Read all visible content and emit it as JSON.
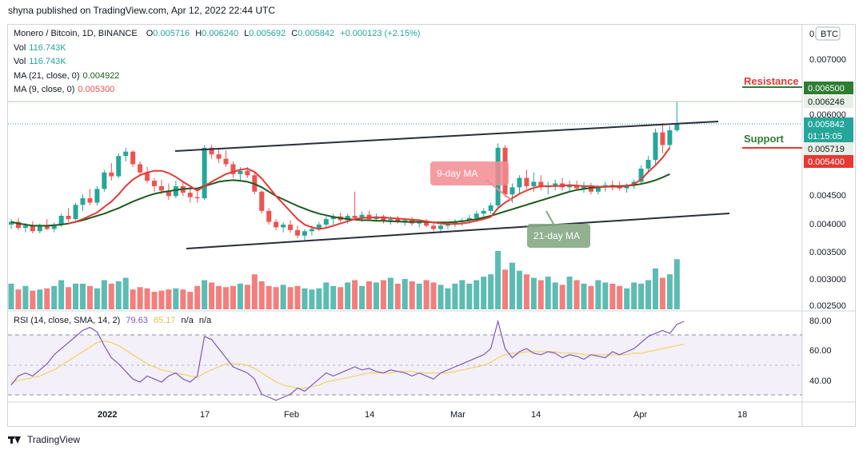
{
  "publisher": "shyna published on TradingView.com, Apr 12, 2022 22:44 UTC",
  "legend": {
    "symbol": "Monero / Bitcoin, 1D, BINANCE",
    "o_label": "O",
    "o": "0.005716",
    "h_label": "H",
    "h": "0.006240",
    "l_label": "L",
    "l": "0.005692",
    "c_label": "C",
    "c": "0.005842",
    "change": "+0.000123 (+2.15%)",
    "vol1_label": "Vol",
    "vol1": "116.743K",
    "vol2_label": "Vol",
    "vol2": "116.743K",
    "ma21_label": "MA (21, close, 0)",
    "ma21": "0.004922",
    "ma9_label": "MA (9, close, 0)",
    "ma9": "0.005300"
  },
  "rsi_legend": {
    "label": "RSI (14, close, SMA, 14, 2)",
    "v1": "79.63",
    "v2": "65.17",
    "v3": "n/a",
    "v4": "n/a"
  },
  "currency_badge": "BTC",
  "footer_brand": "TradingView",
  "annotations": {
    "resistance": "Resistance",
    "support": "Support",
    "ma9_callout": "9-day MA",
    "ma21_callout": "21-day MA"
  },
  "price_axis": {
    "ticks": [
      "0.00",
      "0.007000",
      "0.006500",
      "0.006000",
      "0.004500",
      "0.004000",
      "0.003500",
      "0.003000",
      "0.002500"
    ],
    "badges": [
      {
        "text": "0.006500",
        "color": "#2e7d32"
      },
      {
        "text": "0.006246",
        "color": "#e8efe6"
      },
      {
        "text": "0.005842",
        "color": "#26a69a"
      },
      {
        "text": "01:15:05",
        "color": "#26a69a"
      },
      {
        "text": "0.005719",
        "color": "#e8efe6"
      },
      {
        "text": "0.005400",
        "color": "#e53935"
      }
    ]
  },
  "rsi_axis": {
    "ticks": [
      "80.00",
      "60.00",
      "40.00"
    ]
  },
  "time_axis": {
    "ticks": [
      "2022",
      "17",
      "Feb",
      "14",
      "Mar",
      "14",
      "Apr",
      "18"
    ]
  },
  "colors": {
    "up": "#26a69a",
    "down": "#ef5350",
    "ma9": "#e53935",
    "ma21": "#1e5b1e",
    "rsi": "#7e57c2",
    "rsi_ma": "#f0d264",
    "trend": "#2a2e39"
  },
  "chart_data": {
    "type": "candlestick",
    "title": "Monero / Bitcoin, 1D, BINANCE",
    "ylim": [
      0.0025,
      0.0077
    ],
    "candles": [
      [
        0.004,
        0.0041,
        0.00392,
        0.00405
      ],
      [
        0.00405,
        0.00412,
        0.0039,
        0.00394
      ],
      [
        0.00394,
        0.00403,
        0.00386,
        0.00398
      ],
      [
        0.00398,
        0.00406,
        0.00384,
        0.00388
      ],
      [
        0.00388,
        0.00402,
        0.00384,
        0.00398
      ],
      [
        0.00398,
        0.0041,
        0.0039,
        0.00392
      ],
      [
        0.00392,
        0.00404,
        0.00386,
        0.004
      ],
      [
        0.004,
        0.0042,
        0.00396,
        0.00416
      ],
      [
        0.00416,
        0.0043,
        0.00405,
        0.0041
      ],
      [
        0.0041,
        0.0044,
        0.00408,
        0.00436
      ],
      [
        0.00436,
        0.00455,
        0.00425,
        0.00448
      ],
      [
        0.00448,
        0.00465,
        0.00435,
        0.0044
      ],
      [
        0.0044,
        0.0047,
        0.00435,
        0.00465
      ],
      [
        0.00465,
        0.005,
        0.0046,
        0.00495
      ],
      [
        0.00495,
        0.00512,
        0.0048,
        0.00488
      ],
      [
        0.00488,
        0.0053,
        0.00485,
        0.00525
      ],
      [
        0.00525,
        0.0054,
        0.00515,
        0.00533
      ],
      [
        0.00533,
        0.00535,
        0.00505,
        0.0051
      ],
      [
        0.0051,
        0.00515,
        0.0049,
        0.00495
      ],
      [
        0.00495,
        0.00505,
        0.00475,
        0.0048
      ],
      [
        0.0048,
        0.00485,
        0.0046,
        0.0047
      ],
      [
        0.0047,
        0.00482,
        0.00455,
        0.00462
      ],
      [
        0.00462,
        0.00475,
        0.00445,
        0.00452
      ],
      [
        0.00452,
        0.0048,
        0.00448,
        0.0047
      ],
      [
        0.0047,
        0.00478,
        0.00452,
        0.00458
      ],
      [
        0.00458,
        0.0047,
        0.0044,
        0.0045
      ],
      [
        0.0045,
        0.00462,
        0.0044,
        0.00448
      ],
      [
        0.00448,
        0.00545,
        0.00445,
        0.0054
      ],
      [
        0.0054,
        0.00545,
        0.0052,
        0.00528
      ],
      [
        0.00528,
        0.0054,
        0.00512,
        0.0052
      ],
      [
        0.0052,
        0.00535,
        0.00505,
        0.0051
      ],
      [
        0.0051,
        0.00515,
        0.00485,
        0.00492
      ],
      [
        0.00492,
        0.00505,
        0.0048,
        0.00498
      ],
      [
        0.00498,
        0.00505,
        0.00485,
        0.0049
      ],
      [
        0.0049,
        0.00495,
        0.00455,
        0.0046
      ],
      [
        0.0046,
        0.00462,
        0.0042,
        0.00425
      ],
      [
        0.00425,
        0.0043,
        0.004,
        0.00405
      ],
      [
        0.00405,
        0.0041,
        0.0039,
        0.00395
      ],
      [
        0.00395,
        0.00405,
        0.00386,
        0.004
      ],
      [
        0.004,
        0.00408,
        0.00385,
        0.0039
      ],
      [
        0.0039,
        0.00398,
        0.00375,
        0.0038
      ],
      [
        0.0038,
        0.00392,
        0.00372,
        0.00388
      ],
      [
        0.00388,
        0.00398,
        0.0038,
        0.00392
      ],
      [
        0.00392,
        0.00405,
        0.00388,
        0.004
      ],
      [
        0.004,
        0.00415,
        0.00395,
        0.0041
      ],
      [
        0.0041,
        0.0042,
        0.004,
        0.00415
      ],
      [
        0.00415,
        0.00422,
        0.00405,
        0.00408
      ],
      [
        0.00408,
        0.0042,
        0.00402,
        0.00416
      ],
      [
        0.00416,
        0.0046,
        0.0041,
        0.00412
      ],
      [
        0.00412,
        0.00424,
        0.00405,
        0.00418
      ],
      [
        0.00418,
        0.00425,
        0.00408,
        0.0041
      ],
      [
        0.0041,
        0.0042,
        0.00405,
        0.00415
      ],
      [
        0.00415,
        0.00418,
        0.00402,
        0.00408
      ],
      [
        0.00408,
        0.00415,
        0.004,
        0.0041
      ],
      [
        0.0041,
        0.00416,
        0.00402,
        0.00404
      ],
      [
        0.00404,
        0.00412,
        0.00398,
        0.00408
      ],
      [
        0.00408,
        0.00414,
        0.00398,
        0.00402
      ],
      [
        0.00402,
        0.0041,
        0.00395,
        0.00405
      ],
      [
        0.00405,
        0.0041,
        0.00395,
        0.00398
      ],
      [
        0.00398,
        0.00405,
        0.00388,
        0.00392
      ],
      [
        0.00392,
        0.00402,
        0.00384,
        0.00398
      ],
      [
        0.00398,
        0.00405,
        0.00392,
        0.004
      ],
      [
        0.004,
        0.0041,
        0.00395,
        0.00405
      ],
      [
        0.00405,
        0.00412,
        0.00398,
        0.00408
      ],
      [
        0.00408,
        0.00418,
        0.00402,
        0.00412
      ],
      [
        0.00412,
        0.00425,
        0.00408,
        0.0042
      ],
      [
        0.0042,
        0.0043,
        0.00415,
        0.00425
      ],
      [
        0.00425,
        0.0044,
        0.0042,
        0.00435
      ],
      [
        0.00435,
        0.00548,
        0.0043,
        0.0054
      ],
      [
        0.0054,
        0.00545,
        0.0045,
        0.00455
      ],
      [
        0.00455,
        0.00475,
        0.0044,
        0.00468
      ],
      [
        0.00468,
        0.0049,
        0.00455,
        0.00485
      ],
      [
        0.00485,
        0.005,
        0.00465,
        0.0047
      ],
      [
        0.0047,
        0.00495,
        0.0046,
        0.00478
      ],
      [
        0.00478,
        0.0049,
        0.00462,
        0.00468
      ],
      [
        0.00468,
        0.00478,
        0.00455,
        0.0047
      ],
      [
        0.0047,
        0.00482,
        0.00462,
        0.00475
      ],
      [
        0.00475,
        0.00485,
        0.00462,
        0.00468
      ],
      [
        0.00468,
        0.0048,
        0.0046,
        0.00472
      ],
      [
        0.00472,
        0.0048,
        0.00462,
        0.00466
      ],
      [
        0.00466,
        0.00478,
        0.00458,
        0.0047
      ],
      [
        0.0047,
        0.00476,
        0.00455,
        0.0046
      ],
      [
        0.0046,
        0.00472,
        0.00455,
        0.00468
      ],
      [
        0.00468,
        0.00478,
        0.0046,
        0.00472
      ],
      [
        0.00472,
        0.0048,
        0.00462,
        0.0047
      ],
      [
        0.0047,
        0.00478,
        0.00462,
        0.00466
      ],
      [
        0.00466,
        0.00475,
        0.00458,
        0.00472
      ],
      [
        0.00472,
        0.00482,
        0.00465,
        0.00478
      ],
      [
        0.00478,
        0.00508,
        0.00475,
        0.00502
      ],
      [
        0.00502,
        0.00525,
        0.00495,
        0.00518
      ],
      [
        0.00518,
        0.00575,
        0.0051,
        0.00568
      ],
      [
        0.00568,
        0.00585,
        0.0053,
        0.00545
      ],
      [
        0.00545,
        0.0058,
        0.0054,
        0.00572
      ],
      [
        0.00572,
        0.00624,
        0.00569,
        0.00584
      ]
    ],
    "volume": [
      0.44,
      0.34,
      0.4,
      0.32,
      0.34,
      0.36,
      0.4,
      0.5,
      0.38,
      0.44,
      0.44,
      0.4,
      0.36,
      0.5,
      0.44,
      0.48,
      0.54,
      0.34,
      0.38,
      0.36,
      0.3,
      0.32,
      0.34,
      0.36,
      0.34,
      0.3,
      0.4,
      0.5,
      0.46,
      0.4,
      0.38,
      0.4,
      0.44,
      0.42,
      0.6,
      0.48,
      0.4,
      0.38,
      0.42,
      0.38,
      0.4,
      0.36,
      0.34,
      0.36,
      0.46,
      0.4,
      0.38,
      0.46,
      0.5,
      0.4,
      0.48,
      0.46,
      0.5,
      0.54,
      0.44,
      0.52,
      0.48,
      0.44,
      0.5,
      0.46,
      0.42,
      0.36,
      0.44,
      0.5,
      0.44,
      0.5,
      0.56,
      0.6,
      1.0,
      0.68,
      0.8,
      0.66,
      0.6,
      0.54,
      0.5,
      0.56,
      0.46,
      0.42,
      0.56,
      0.5,
      0.44,
      0.4,
      0.5,
      0.46,
      0.44,
      0.4,
      0.36,
      0.46,
      0.44,
      0.5,
      0.7,
      0.54,
      0.6,
      0.86,
      1.2
    ],
    "rsi": [
      38,
      44,
      46,
      44,
      48,
      52,
      58,
      62,
      66,
      70,
      74,
      76,
      73,
      64,
      56,
      52,
      47,
      42,
      40,
      44,
      42,
      40,
      44,
      46,
      42,
      40,
      44,
      70,
      68,
      62,
      56,
      50,
      48,
      46,
      42,
      32,
      30,
      28,
      30,
      32,
      36,
      34,
      38,
      42,
      46,
      44,
      46,
      48,
      50,
      48,
      49,
      47,
      46,
      48,
      47,
      46,
      44,
      46,
      44,
      42,
      46,
      48,
      50,
      52,
      54,
      56,
      58,
      62,
      80,
      62,
      56,
      60,
      62,
      59,
      58,
      60,
      59,
      56,
      58,
      57,
      55,
      58,
      57,
      56,
      60,
      58,
      60,
      62,
      66,
      70,
      72,
      74,
      72,
      78,
      80
    ],
    "rsi_ma": [
      40,
      41,
      42,
      43,
      44,
      46,
      48,
      51,
      54,
      57,
      60,
      63,
      66,
      67,
      66,
      64,
      61,
      58,
      55,
      52,
      50,
      48,
      47,
      46,
      45,
      44,
      43,
      46,
      48,
      50,
      52,
      52,
      52,
      51,
      49,
      46,
      43,
      40,
      38,
      37,
      36,
      36,
      37,
      38,
      40,
      41,
      42,
      43,
      44,
      45,
      46,
      46,
      46,
      46,
      47,
      47,
      47,
      46,
      46,
      46,
      46,
      46,
      47,
      48,
      49,
      50,
      51,
      53,
      56,
      58,
      59,
      59,
      60,
      60,
      60,
      60,
      60,
      59,
      59,
      59,
      58,
      58,
      58,
      58,
      58,
      58,
      58,
      59,
      59,
      60,
      61,
      62,
      63,
      64,
      65
    ],
    "ma9": [
      null,
      null,
      null,
      null,
      null,
      null,
      null,
      null,
      0.00402,
      0.00405,
      0.0041,
      0.00416,
      0.00422,
      0.00432,
      0.00442,
      0.00455,
      0.0047,
      0.00482,
      0.0049,
      0.00495,
      0.00498,
      0.00498,
      0.00494,
      0.00487,
      0.00478,
      0.0047,
      0.00462,
      0.0047,
      0.00478,
      0.00485,
      0.00492,
      0.00496,
      0.005,
      0.00502,
      0.00496,
      0.00484,
      0.00468,
      0.00452,
      0.00438,
      0.00424,
      0.0041,
      0.004,
      0.00395,
      0.00392,
      0.00394,
      0.00398,
      0.00402,
      0.00406,
      0.0041,
      0.00412,
      0.00413,
      0.00413,
      0.00413,
      0.00412,
      0.00411,
      0.0041,
      0.00409,
      0.00408,
      0.00406,
      0.00404,
      0.00402,
      0.00401,
      0.00401,
      0.00402,
      0.00404,
      0.00407,
      0.0041,
      0.00414,
      0.0043,
      0.0044,
      0.00448,
      0.00456,
      0.00462,
      0.00467,
      0.0047,
      0.0047,
      0.0047,
      0.00471,
      0.00472,
      0.00471,
      0.0047,
      0.0047,
      0.00469,
      0.00469,
      0.00469,
      0.00469,
      0.0047,
      0.00474,
      0.00482,
      0.00496,
      0.00508,
      0.00522,
      0.0054
    ],
    "ma21": [
      0.00405,
      0.00402,
      0.004,
      0.00398,
      0.00398,
      0.00398,
      0.00399,
      0.004,
      0.00402,
      0.00405,
      0.00408,
      0.00412,
      0.00416,
      0.0042,
      0.00425,
      0.0043,
      0.00436,
      0.00442,
      0.00447,
      0.00452,
      0.00456,
      0.00459,
      0.00461,
      0.00463,
      0.00465,
      0.00466,
      0.00466,
      0.0047,
      0.00474,
      0.00478,
      0.0048,
      0.00481,
      0.0048,
      0.00478,
      0.00474,
      0.00468,
      0.0046,
      0.00452,
      0.00446,
      0.0044,
      0.00434,
      0.00429,
      0.00424,
      0.0042,
      0.00417,
      0.00414,
      0.00412,
      0.0041,
      0.00409,
      0.00408,
      0.00408,
      0.00407,
      0.00407,
      0.00406,
      0.00406,
      0.00405,
      0.00405,
      0.00405,
      0.00405,
      0.00404,
      0.00404,
      0.00404,
      0.00405,
      0.00406,
      0.00408,
      0.0041,
      0.00413,
      0.00416,
      0.0042,
      0.00424,
      0.00428,
      0.00432,
      0.00436,
      0.0044,
      0.00444,
      0.00448,
      0.00452,
      0.00456,
      0.0046,
      0.00463,
      0.00465,
      0.00467,
      0.00468,
      0.00469,
      0.0047,
      0.0047,
      0.00471,
      0.00472,
      0.00474,
      0.00477,
      0.00481,
      0.00486,
      0.00492
    ]
  }
}
